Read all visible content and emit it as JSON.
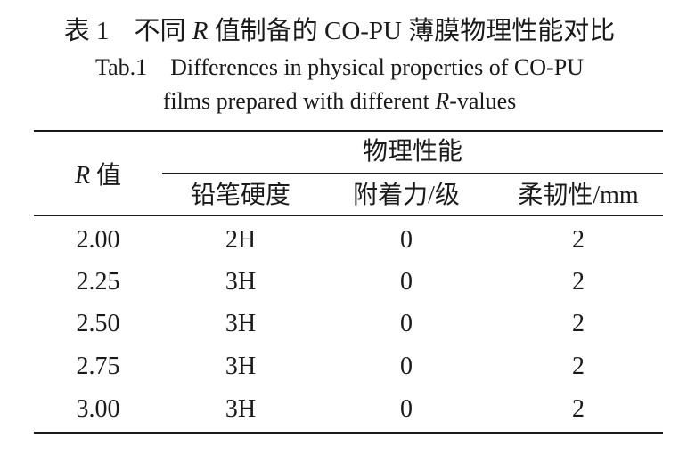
{
  "caption": {
    "cn_label": "表 1",
    "cn_title_pre": "不同 ",
    "cn_title_var": "R",
    "cn_title_post": " 值制备的 CO-PU 薄膜物理性能对比",
    "en_label": "Tab.1",
    "en_title_line1": "Differences in physical properties of CO-PU",
    "en_title_line2_pre": "films prepared with different ",
    "en_title_line2_var": "R",
    "en_title_line2_post": "-values"
  },
  "table": {
    "header": {
      "r_var": "R",
      "r_suffix": " 值",
      "group": "物理性能",
      "columns": [
        "铅笔硬度",
        "附着力/级",
        "柔韧性/mm"
      ]
    },
    "rows": [
      {
        "r": "2.00",
        "hardness": "2H",
        "adhesion": "0",
        "flexibility": "2"
      },
      {
        "r": "2.25",
        "hardness": "3H",
        "adhesion": "0",
        "flexibility": "2"
      },
      {
        "r": "2.50",
        "hardness": "3H",
        "adhesion": "0",
        "flexibility": "2"
      },
      {
        "r": "2.75",
        "hardness": "3H",
        "adhesion": "0",
        "flexibility": "2"
      },
      {
        "r": "3.00",
        "hardness": "3H",
        "adhesion": "0",
        "flexibility": "2"
      }
    ]
  }
}
